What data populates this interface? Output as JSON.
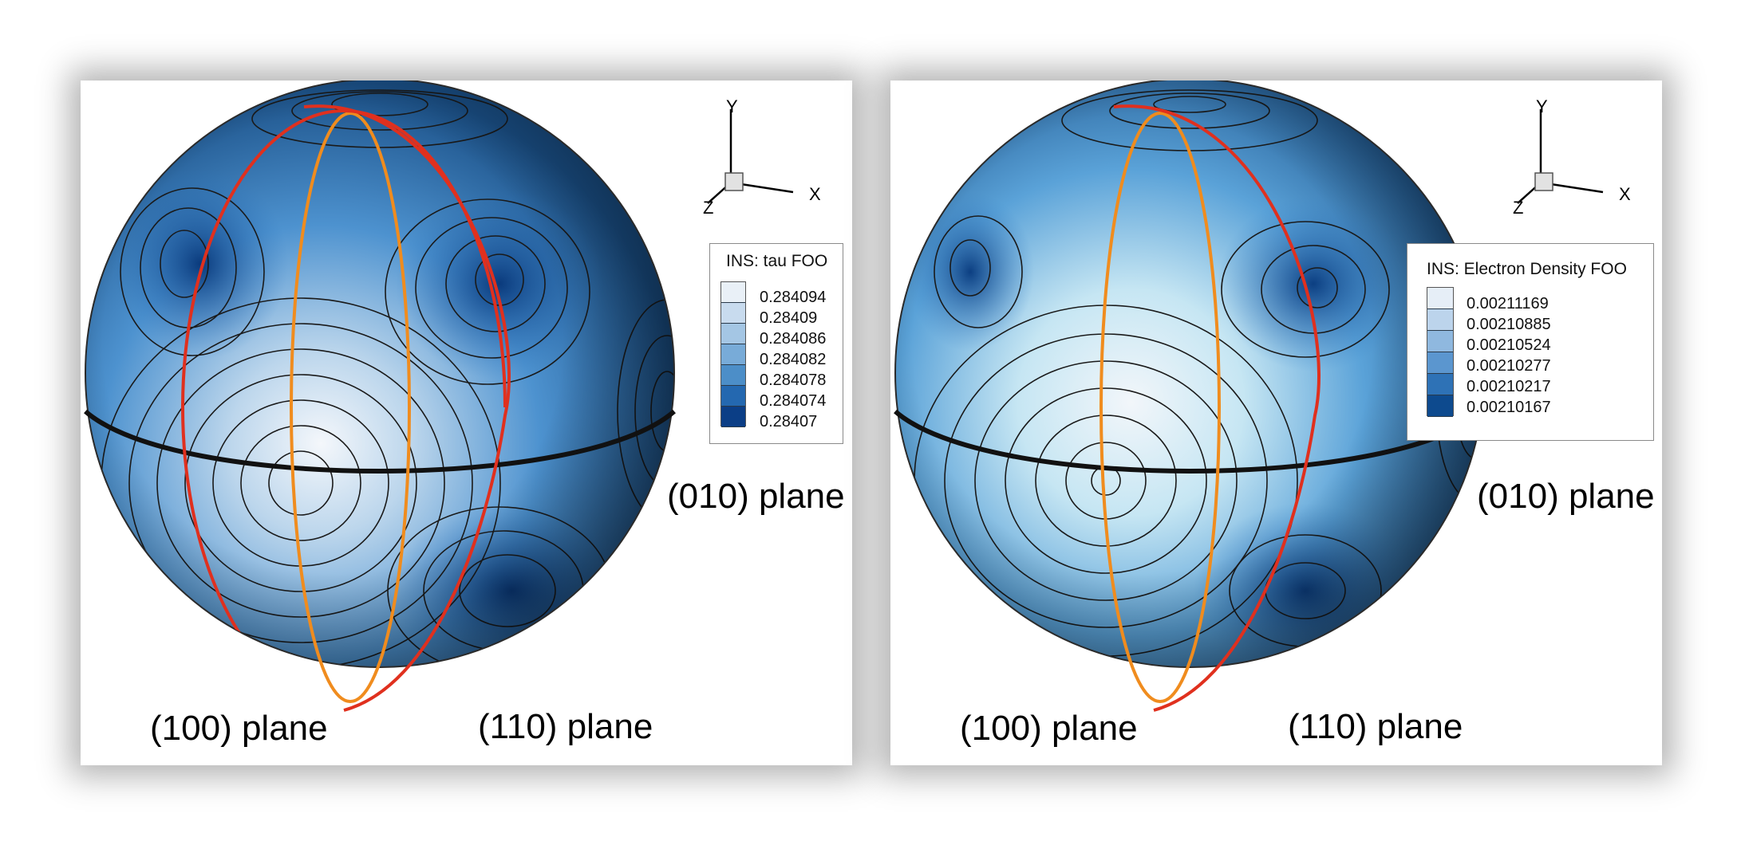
{
  "panels": [
    {
      "legend_title": "INS: tau FOO",
      "legend_entries": [
        "0.284094",
        "0.28409",
        "0.284086",
        "0.284082",
        "0.284078",
        "0.284074",
        "0.28407"
      ],
      "plane_labels": {
        "p100": "(100) plane",
        "p110": "(110) plane",
        "p010": "(010) plane"
      },
      "axes": {
        "y": "Y",
        "x": "X",
        "z": "Z"
      }
    },
    {
      "legend_title": "INS: Electron Density FOO",
      "legend_entries": [
        "0.00211169",
        "0.00210885",
        "0.00210524",
        "0.00210277",
        "0.00210217",
        "0.00210167"
      ],
      "plane_labels": {
        "p100": "(100) plane",
        "p110": "(110) plane",
        "p010": "(010) plane"
      },
      "axes": {
        "y": "Y",
        "x": "X",
        "z": "Z"
      }
    }
  ],
  "colors": {
    "plane_100": "#f08c1e",
    "plane_110": "#e0301e",
    "plane_010": "#111111",
    "sphere_light": "#eef4fa",
    "sphere_mid": "#3f8fd0",
    "sphere_dark": "#0b3e7a",
    "legend_swatches_1": [
      "#e9f0f7",
      "#c8dbee",
      "#a4c6e4",
      "#78abd8",
      "#4c8ec8",
      "#2468b0",
      "#0b3e86"
    ],
    "legend_swatches_2": [
      "#e6eef7",
      "#bcd4ec",
      "#8fb8df",
      "#5b96cf",
      "#2e72b6",
      "#0d4a8e"
    ]
  }
}
